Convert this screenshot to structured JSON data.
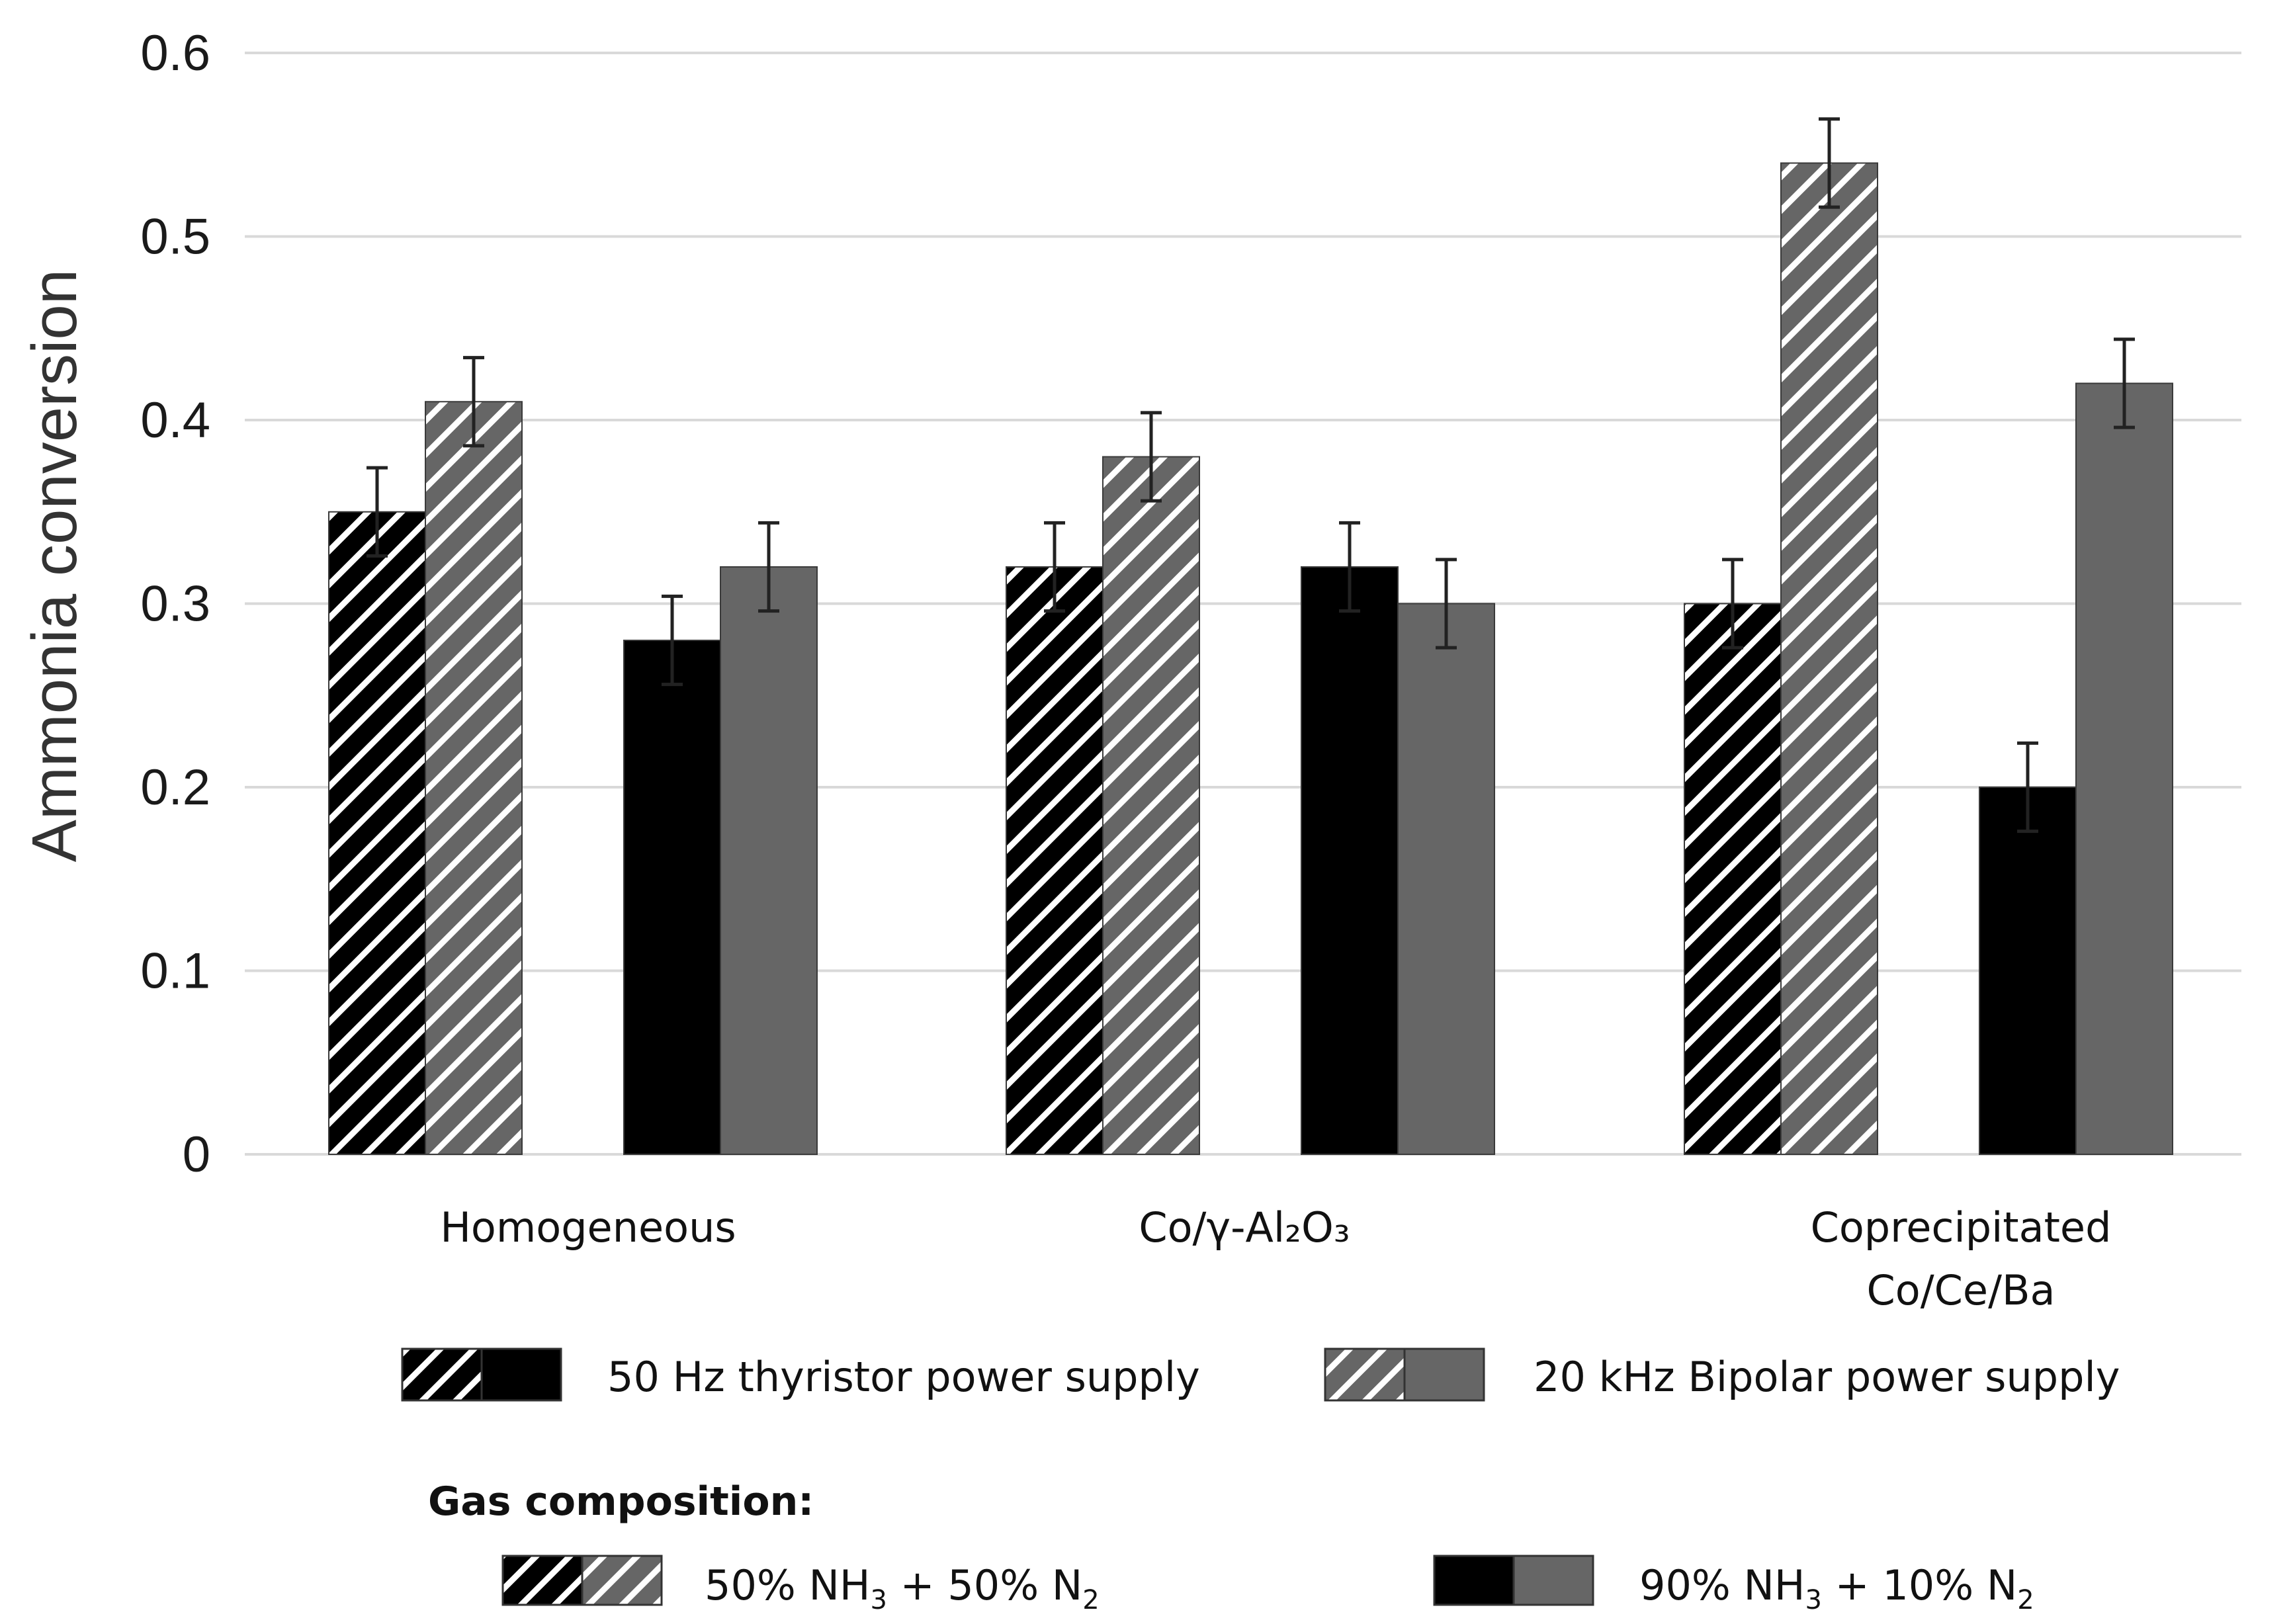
{
  "chart_data": {
    "type": "bar",
    "ylabel": "Ammonia conversion",
    "ylim": [
      0,
      0.6
    ],
    "yticks": [
      "0",
      "0.1",
      "0.2",
      "0.3",
      "0.4",
      "0.5",
      "0.6"
    ],
    "grid": true,
    "categories": [
      {
        "lines": [
          "Homogeneous"
        ]
      },
      {
        "lines": [
          "Co/γ-Al₂O₃"
        ]
      },
      {
        "lines": [
          "Coprecipitated",
          "Co/Ce/Ba"
        ]
      }
    ],
    "series": [
      {
        "name": "50 Hz thyristor, 50% NH3 + 50% N2",
        "pattern": "hatch",
        "color": "#000000",
        "values": [
          0.35,
          0.32,
          0.3
        ],
        "errors": [
          0.024,
          0.024,
          0.024
        ]
      },
      {
        "name": "20 kHz Bipolar, 50% NH3 + 50% N2",
        "pattern": "hatch",
        "color": "#666666",
        "values": [
          0.41,
          0.38,
          0.54
        ],
        "errors": [
          0.024,
          0.024,
          0.024
        ]
      },
      {
        "name": "50 Hz thyristor, 90% NH3 + 10% N2",
        "pattern": "solid",
        "color": "#000000",
        "values": [
          0.28,
          0.32,
          0.2
        ],
        "errors": [
          0.024,
          0.024,
          0.024
        ]
      },
      {
        "name": "20 kHz Bipolar, 90% NH3 + 10% N2",
        "pattern": "solid",
        "color": "#666666",
        "values": [
          0.32,
          0.3,
          0.42
        ],
        "errors": [
          0.024,
          0.024,
          0.024
        ]
      }
    ],
    "legend": {
      "power": [
        {
          "label": "50 Hz thyristor power supply",
          "color": "#000000"
        },
        {
          "label": "20 kHz Bipolar power supply",
          "color": "#666666"
        }
      ],
      "gas_heading": "Gas composition:",
      "gas": [
        {
          "pattern": "hatch",
          "parts": [
            {
              "t": "50% NH"
            },
            {
              "t": "3",
              "sub": true
            },
            {
              "t": " + 50% N"
            },
            {
              "t": "2",
              "sub": true
            }
          ]
        },
        {
          "pattern": "solid",
          "parts": [
            {
              "t": "90% NH"
            },
            {
              "t": "3",
              "sub": true
            },
            {
              "t": " + 10% N"
            },
            {
              "t": "2",
              "sub": true
            }
          ]
        }
      ]
    }
  }
}
